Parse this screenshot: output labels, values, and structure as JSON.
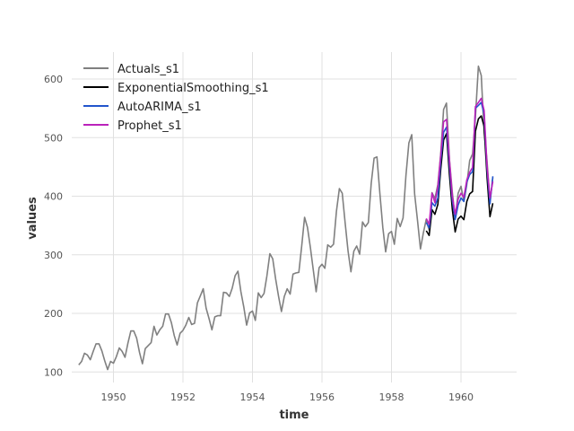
{
  "chart_data": {
    "type": "line",
    "title": "",
    "xlabel": "time",
    "ylabel": "values",
    "xlim": [
      1948.8,
      1961.6
    ],
    "ylim": [
      82,
      646
    ],
    "xticks": [
      1950,
      1952,
      1954,
      1956,
      1958,
      1960
    ],
    "yticks": [
      100,
      200,
      300,
      400,
      500,
      600
    ],
    "grid": true,
    "legend_position": "top-left",
    "series": [
      {
        "name": "Actuals_s1",
        "color": "#808080",
        "x_start": 1949.0,
        "x_step": 0.08333,
        "values": [
          112,
          118,
          132,
          129,
          121,
          135,
          148,
          148,
          136,
          119,
          104,
          118,
          115,
          126,
          141,
          135,
          125,
          149,
          170,
          170,
          158,
          133,
          114,
          140,
          145,
          150,
          178,
          163,
          172,
          178,
          199,
          199,
          184,
          162,
          146,
          166,
          171,
          180,
          193,
          181,
          183,
          218,
          230,
          242,
          209,
          191,
          172,
          194,
          196,
          196,
          236,
          235,
          229,
          243,
          264,
          272,
          237,
          211,
          180,
          201,
          204,
          188,
          235,
          227,
          234,
          264,
          302,
          293,
          259,
          229,
          203,
          229,
          242,
          233,
          267,
          269,
          270,
          315,
          364,
          347,
          312,
          274,
          237,
          278,
          284,
          277,
          317,
          313,
          318,
          374,
          413,
          405,
          355,
          306,
          271,
          306,
          315,
          301,
          356,
          348,
          355,
          422,
          465,
          467,
          404,
          347,
          305,
          336,
          340,
          318,
          362,
          348,
          363,
          435,
          491,
          505,
          404,
          359,
          310,
          337,
          360,
          342,
          406,
          396,
          420,
          472,
          548,
          559,
          463,
          407,
          362,
          405,
          417,
          391,
          419,
          461,
          472,
          535,
          622,
          606,
          508,
          461,
          390,
          432
        ]
      },
      {
        "name": "ExponentialSmoothing_s1",
        "color": "#000000",
        "x_start": 1959.0,
        "x_step": 0.08333,
        "values": [
          341,
          333,
          377,
          369,
          386,
          446,
          496,
          507,
          437,
          378,
          339,
          361,
          366,
          360,
          391,
          404,
          408,
          511,
          532,
          537,
          519,
          431,
          365,
          388
        ]
      },
      {
        "name": "AutoARIMA_s1",
        "color": "#2255cc",
        "x_start": 1959.0,
        "x_step": 0.08333,
        "values": [
          355,
          346,
          389,
          383,
          397,
          461,
          509,
          518,
          453,
          393,
          360,
          385,
          397,
          391,
          424,
          437,
          442,
          550,
          555,
          560,
          540,
          445,
          387,
          434
        ]
      },
      {
        "name": "Prophet_s1",
        "color": "#bb22bb",
        "x_start": 1959.0,
        "x_step": 0.08333,
        "values": [
          362,
          352,
          405,
          389,
          416,
          470,
          527,
          531,
          462,
          400,
          369,
          395,
          405,
          398,
          428,
          441,
          449,
          553,
          560,
          567,
          546,
          450,
          397,
          425
        ]
      }
    ]
  }
}
